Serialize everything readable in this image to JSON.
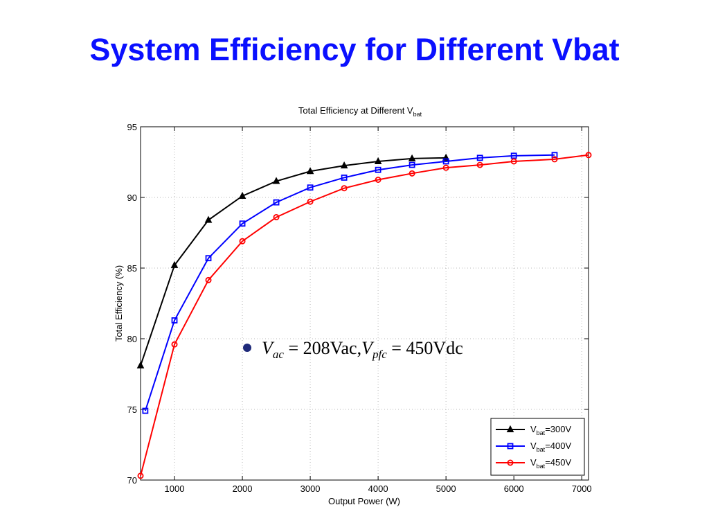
{
  "slide": {
    "title": "System Efficiency for Different Vbat"
  },
  "chart_data": {
    "type": "line",
    "title": "Total Efficiency at Different V",
    "title_sub": "bat",
    "xlabel": "Output Power (W)",
    "ylabel": "Total Efficiency (%)",
    "xlim": [
      500,
      7100
    ],
    "ylim": [
      70,
      95
    ],
    "xticks": [
      1000,
      2000,
      3000,
      4000,
      5000,
      6000,
      7000
    ],
    "yticks": [
      70,
      75,
      80,
      85,
      90,
      95
    ],
    "grid": true,
    "legend_position": "bottom-right",
    "annotation": {
      "bullet_color": "#1f2a7a",
      "v1": "V",
      "v1_sub": "ac",
      "eq1": " = 208Vac,",
      "v2": "V",
      "v2_sub": "pfc",
      "eq2": " = 450Vdc"
    },
    "series": [
      {
        "label": "V",
        "label_sub": "bat",
        "label_suffix": "=300V",
        "color": "#000000",
        "marker": "triangle",
        "x": [
          500,
          1000,
          1500,
          2000,
          2500,
          3000,
          3500,
          4000,
          4500,
          5000
        ],
        "y": [
          78.1,
          85.2,
          88.4,
          90.1,
          91.15,
          91.85,
          92.25,
          92.55,
          92.75,
          92.8
        ]
      },
      {
        "label": "V",
        "label_sub": "bat",
        "label_suffix": "=400V",
        "color": "#0000ff",
        "marker": "square",
        "x": [
          570,
          1000,
          1500,
          2000,
          2500,
          3000,
          3500,
          4000,
          4500,
          5000,
          5500,
          6000,
          6600
        ],
        "y": [
          74.9,
          81.3,
          85.7,
          88.15,
          89.65,
          90.7,
          91.4,
          91.95,
          92.3,
          92.55,
          92.8,
          92.95,
          93.0
        ]
      },
      {
        "label": "V",
        "label_sub": "bat",
        "label_suffix": "=450V",
        "color": "#ff0000",
        "marker": "circle",
        "x": [
          500,
          1000,
          1500,
          2000,
          2500,
          3000,
          3500,
          4000,
          4500,
          5000,
          5500,
          6000,
          6600,
          7100
        ],
        "y": [
          70.3,
          79.6,
          84.15,
          86.9,
          88.6,
          89.7,
          90.65,
          91.25,
          91.7,
          92.1,
          92.3,
          92.55,
          92.7,
          93.0
        ]
      }
    ]
  }
}
